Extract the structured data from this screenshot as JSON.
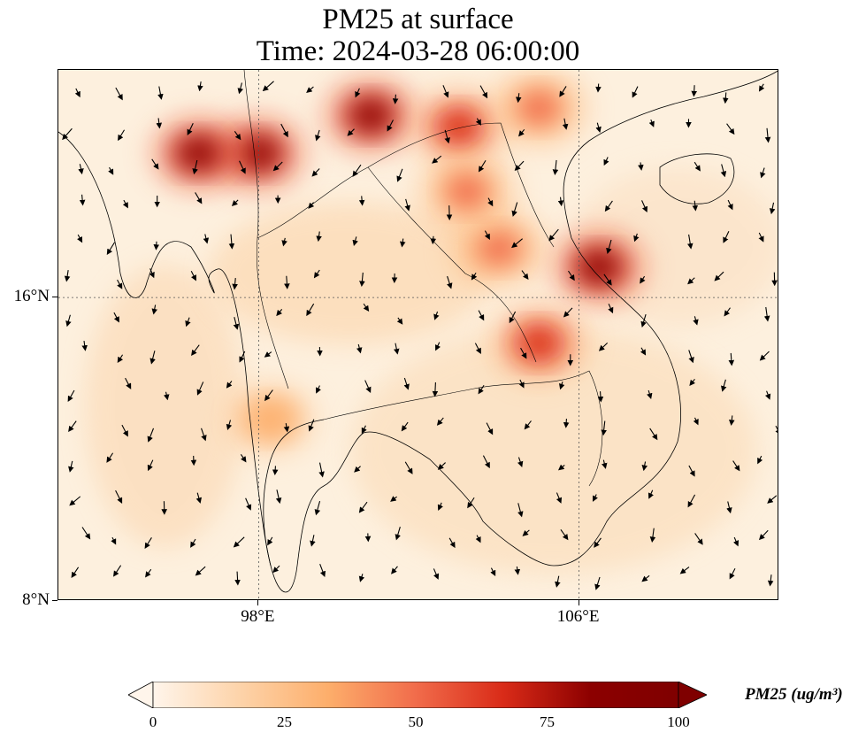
{
  "title": {
    "line1": "PM25 at surface",
    "line2": "Time: 2024-03-28 06:00:00"
  },
  "map": {
    "lon_range": [
      93.0,
      111.0
    ],
    "lat_range": [
      8.0,
      22.0
    ],
    "y_ticks": [
      {
        "value": 16,
        "label": "16°N"
      },
      {
        "value": 8,
        "label": "8°N"
      }
    ],
    "x_ticks": [
      {
        "value": 98,
        "label": "98°E"
      },
      {
        "value": 106,
        "label": "106°E"
      }
    ],
    "gridlines": "dotted",
    "variable": "PM25",
    "overlay": "wind vectors (arrows)",
    "hotspots": [
      {
        "lon": 98.0,
        "lat": 19.8,
        "level": 100
      },
      {
        "lon": 100.8,
        "lat": 20.8,
        "level": 100
      },
      {
        "lon": 96.5,
        "lat": 19.8,
        "level": 95
      },
      {
        "lon": 103.0,
        "lat": 20.5,
        "level": 85
      },
      {
        "lon": 106.5,
        "lat": 16.8,
        "level": 100
      },
      {
        "lon": 105.0,
        "lat": 14.8,
        "level": 75
      },
      {
        "lon": 104.0,
        "lat": 17.3,
        "level": 60
      },
      {
        "lon": 103.2,
        "lat": 18.8,
        "level": 55
      },
      {
        "lon": 105.0,
        "lat": 21.0,
        "level": 60
      },
      {
        "lon": 98.3,
        "lat": 12.8,
        "level": 45
      }
    ]
  },
  "colorbar": {
    "label": "PM25 (ug/m³)",
    "min": 0,
    "max": 100,
    "ticks": [
      "0",
      "25",
      "50",
      "75",
      "100"
    ],
    "colors": [
      "#fff5eb",
      "#fdd3a9",
      "#fdae6b",
      "#f16c4b",
      "#d92b18",
      "#8c0000",
      "#7f0000"
    ],
    "extend": "both"
  }
}
